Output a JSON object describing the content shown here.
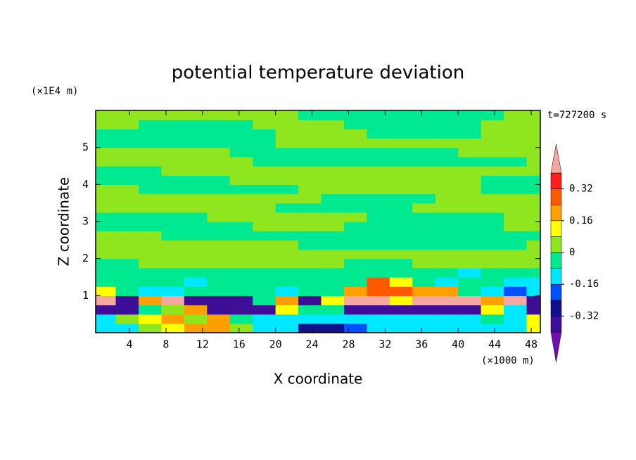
{
  "chart_data": {
    "type": "contour",
    "title": "potential temperature deviation",
    "x_label": "X coordinate",
    "y_label": "Z coordinate",
    "x_unit": "(×1000 m)",
    "y_unit": "(×1E4 m)",
    "time_label": "t=727200 s",
    "xlim": [
      0.3,
      49
    ],
    "ylim": [
      0,
      6
    ],
    "xticks": [
      4,
      8,
      12,
      16,
      20,
      24,
      28,
      32,
      36,
      40,
      44,
      48
    ],
    "yticks": [
      1,
      2,
      3,
      4,
      5
    ],
    "clim": [
      -0.4,
      0.4
    ],
    "colors": [
      "#3c0f96",
      "#10108c",
      "#0050ff",
      "#00e8ff",
      "#00e890",
      "#90e61e",
      "#ffff00",
      "#ffa000",
      "#ff5a00",
      "#ff1e1e"
    ],
    "under_color": "#7010b0",
    "over_color": "#f4a8a0",
    "cticks": [
      -0.32,
      -0.16,
      0,
      0.16,
      0.32
    ],
    "x": [
      1.25,
      3.75,
      6.25,
      8.75,
      11.25,
      13.75,
      16.25,
      18.75,
      21.25,
      23.75,
      26.25,
      28.75,
      31.25,
      33.75,
      36.25,
      38.75,
      41.25,
      43.75,
      46.25,
      48.75
    ],
    "y": [
      0.125,
      0.375,
      0.625,
      0.875,
      1.125,
      1.375,
      1.625,
      1.875,
      2.125,
      2.375,
      2.625,
      2.875,
      3.125,
      3.375,
      3.625,
      3.875,
      4.125,
      4.375,
      4.625,
      4.875,
      5.125,
      5.375,
      5.625,
      5.875
    ],
    "z": [
      [
        -0.12,
        -0.12,
        0.04,
        0.12,
        0.2,
        0.2,
        0.04,
        -0.12,
        -0.12,
        -0.28,
        -0.28,
        -0.2,
        -0.12,
        -0.12,
        -0.12,
        -0.12,
        -0.12,
        -0.12,
        -0.12,
        0.12
      ],
      [
        -0.12,
        0.04,
        0.12,
        0.2,
        0.04,
        0.2,
        -0.04,
        -0.12,
        -0.12,
        -0.12,
        -0.12,
        -0.12,
        -0.12,
        -0.12,
        -0.12,
        -0.12,
        -0.12,
        -0.04,
        -0.12,
        0.12
      ],
      [
        -0.36,
        -0.36,
        -0.04,
        0.04,
        0.2,
        -0.36,
        -0.36,
        -0.36,
        0.12,
        -0.04,
        -0.04,
        -0.36,
        -0.36,
        -0.36,
        -0.36,
        -0.36,
        -0.36,
        0.12,
        -0.12,
        -0.36
      ],
      [
        0.45,
        -0.36,
        0.2,
        0.45,
        -0.36,
        -0.36,
        -0.36,
        -0.04,
        0.2,
        -0.36,
        0.12,
        0.45,
        0.45,
        0.12,
        0.45,
        0.45,
        0.45,
        0.2,
        0.45,
        -0.36
      ],
      [
        0.12,
        -0.04,
        -0.12,
        -0.12,
        -0.04,
        -0.04,
        -0.04,
        -0.04,
        -0.12,
        -0.04,
        -0.04,
        0.2,
        0.28,
        0.28,
        0.2,
        0.2,
        -0.04,
        -0.12,
        -0.2,
        -0.12
      ],
      [
        -0.04,
        -0.04,
        -0.04,
        -0.04,
        -0.12,
        -0.04,
        -0.04,
        -0.04,
        -0.04,
        -0.04,
        -0.04,
        -0.04,
        0.28,
        0.12,
        -0.04,
        -0.12,
        -0.04,
        -0.04,
        -0.12,
        -0.12
      ],
      [
        -0.04,
        -0.04,
        -0.04,
        -0.04,
        -0.04,
        -0.04,
        -0.04,
        -0.04,
        -0.04,
        -0.04,
        -0.04,
        -0.04,
        -0.04,
        -0.04,
        -0.04,
        -0.04,
        -0.12,
        -0.04,
        -0.04,
        -0.04
      ],
      [
        -0.04,
        -0.04,
        0.04,
        0.04,
        0.04,
        0.04,
        0.04,
        0.04,
        0.04,
        0.04,
        0.04,
        -0.04,
        -0.04,
        -0.04,
        0.04,
        0.04,
        0.04,
        0.04,
        0.04,
        0.04
      ],
      [
        0.04,
        0.04,
        0.04,
        0.04,
        0.04,
        0.04,
        0.04,
        0.04,
        0.04,
        0.04,
        0.04,
        0.04,
        0.04,
        0.04,
        0.04,
        0.04,
        0.04,
        0.04,
        0.04,
        0.04
      ],
      [
        0.04,
        0.04,
        0.04,
        0.04,
        0.04,
        0.04,
        0.04,
        0.04,
        0.04,
        -0.04,
        -0.04,
        -0.04,
        -0.04,
        -0.04,
        -0.04,
        -0.04,
        -0.04,
        -0.04,
        -0.04,
        0.04
      ],
      [
        0.04,
        0.04,
        0.04,
        -0.04,
        -0.04,
        -0.04,
        -0.04,
        -0.04,
        -0.04,
        -0.04,
        -0.04,
        -0.04,
        -0.04,
        -0.04,
        -0.04,
        -0.04,
        -0.04,
        -0.04,
        -0.04,
        -0.04
      ],
      [
        -0.04,
        -0.04,
        -0.04,
        -0.04,
        -0.04,
        -0.04,
        -0.04,
        0.04,
        0.04,
        0.04,
        0.04,
        -0.04,
        -0.04,
        -0.04,
        -0.04,
        -0.04,
        -0.04,
        -0.04,
        0.04,
        0.04
      ],
      [
        -0.04,
        -0.04,
        -0.04,
        -0.04,
        -0.04,
        0.04,
        0.04,
        0.04,
        0.04,
        0.04,
        0.04,
        0.04,
        -0.04,
        -0.04,
        -0.04,
        -0.04,
        -0.04,
        -0.04,
        0.04,
        0.04
      ],
      [
        0.04,
        0.04,
        0.04,
        0.04,
        0.04,
        0.04,
        0.04,
        0.04,
        -0.04,
        -0.04,
        -0.04,
        -0.04,
        -0.04,
        -0.04,
        0.04,
        0.04,
        0.04,
        0.04,
        0.04,
        0.04
      ],
      [
        0.04,
        0.04,
        0.04,
        0.04,
        0.04,
        0.04,
        0.04,
        0.04,
        0.04,
        0.04,
        -0.04,
        -0.04,
        -0.04,
        -0.04,
        -0.04,
        0.04,
        0.04,
        0.04,
        0.04,
        0.04
      ],
      [
        0.04,
        0.04,
        -0.04,
        -0.04,
        -0.04,
        -0.04,
        -0.04,
        -0.04,
        -0.04,
        0.04,
        0.04,
        0.04,
        0.04,
        0.04,
        0.04,
        0.04,
        0.04,
        -0.04,
        -0.04,
        -0.04
      ],
      [
        -0.04,
        -0.04,
        -0.04,
        -0.04,
        -0.04,
        -0.04,
        0.04,
        0.04,
        0.04,
        0.04,
        0.04,
        0.04,
        0.04,
        0.04,
        0.04,
        0.04,
        0.04,
        -0.04,
        -0.04,
        -0.04
      ],
      [
        -0.04,
        -0.04,
        -0.04,
        0.04,
        0.04,
        0.04,
        0.04,
        0.04,
        0.04,
        0.04,
        0.04,
        0.04,
        0.04,
        0.04,
        0.04,
        0.04,
        0.04,
        0.04,
        0.04,
        0.04
      ],
      [
        0.04,
        0.04,
        0.04,
        0.04,
        0.04,
        0.04,
        0.04,
        -0.04,
        -0.04,
        -0.04,
        -0.04,
        -0.04,
        -0.04,
        -0.04,
        -0.04,
        -0.04,
        -0.04,
        -0.04,
        -0.04,
        0.04
      ],
      [
        0.04,
        0.04,
        0.04,
        0.04,
        0.04,
        0.04,
        -0.04,
        -0.04,
        -0.04,
        -0.04,
        -0.04,
        -0.04,
        -0.04,
        -0.04,
        -0.04,
        -0.04,
        0.04,
        0.04,
        0.04,
        0.04
      ],
      [
        -0.04,
        -0.04,
        -0.04,
        -0.04,
        -0.04,
        -0.04,
        -0.04,
        -0.04,
        0.04,
        0.04,
        0.04,
        0.04,
        0.04,
        0.04,
        0.04,
        0.04,
        0.04,
        0.04,
        0.04,
        0.04
      ],
      [
        -0.04,
        -0.04,
        -0.04,
        -0.04,
        -0.04,
        -0.04,
        -0.04,
        -0.04,
        0.04,
        0.04,
        0.04,
        0.04,
        -0.04,
        -0.04,
        -0.04,
        -0.04,
        -0.04,
        0.04,
        0.04,
        0.04
      ],
      [
        0.04,
        0.04,
        -0.04,
        -0.04,
        -0.04,
        -0.04,
        -0.04,
        0.04,
        0.04,
        0.04,
        0.04,
        -0.04,
        -0.04,
        -0.04,
        -0.04,
        -0.04,
        -0.04,
        0.04,
        0.04,
        0.04
      ],
      [
        0.04,
        0.04,
        0.04,
        0.04,
        0.04,
        0.04,
        0.04,
        0.04,
        0.04,
        -0.04,
        -0.04,
        -0.04,
        -0.04,
        -0.04,
        -0.04,
        -0.04,
        -0.04,
        -0.04,
        0.04,
        0.04
      ]
    ]
  }
}
